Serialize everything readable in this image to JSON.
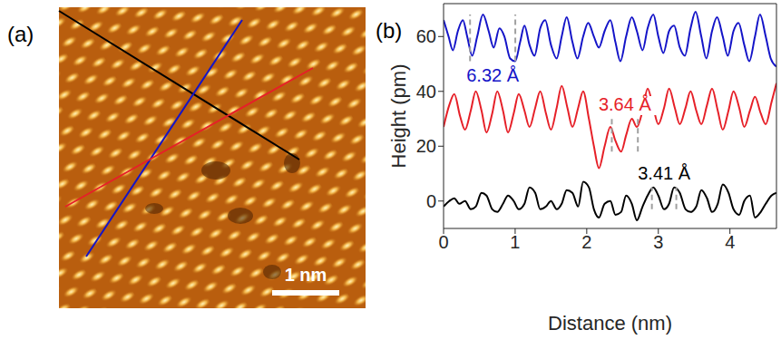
{
  "image_panel": {
    "label": "(a)",
    "scale_bar": "1 nm"
  },
  "chart_data": {
    "label": "(b)",
    "type": "line",
    "x_label": "Distance (nm)",
    "y_label": "Height (pm)",
    "xlim": [
      0,
      4.65
    ],
    "xticks": [
      0,
      1,
      2,
      3,
      4
    ],
    "ylim": [
      -10,
      72
    ],
    "yticks": [
      0,
      20,
      40,
      60
    ],
    "grid": false,
    "series": [
      {
        "color": "#1414c8",
        "measured_positions": [
          0.37,
          1.002
        ],
        "measured_label": "6.32 Å",
        "x": [
          0,
          0.07,
          0.13,
          0.2,
          0.27,
          0.33,
          0.4,
          0.47,
          0.55,
          0.63,
          0.7,
          0.78,
          0.85,
          0.93,
          1.0,
          1.07,
          1.13,
          1.2,
          1.27,
          1.35,
          1.42,
          1.5,
          1.58,
          1.65,
          1.72,
          1.8,
          1.87,
          1.95,
          2.02,
          2.1,
          2.17,
          2.25,
          2.33,
          2.4,
          2.47,
          2.55,
          2.63,
          2.7,
          2.78,
          2.85,
          2.93,
          3.0,
          3.07,
          3.15,
          3.22,
          3.3,
          3.37,
          3.45,
          3.52,
          3.6,
          3.67,
          3.75,
          3.82,
          3.9,
          3.97,
          4.05,
          4.12,
          4.2,
          4.27,
          4.35,
          4.42,
          4.5,
          4.57,
          4.65
        ],
        "values": [
          66,
          60,
          55,
          62,
          66,
          60,
          53,
          60,
          68,
          62,
          56,
          63,
          60,
          52,
          51,
          58,
          64,
          57,
          53,
          63,
          66,
          57,
          52,
          60,
          67,
          58,
          52,
          60,
          65,
          60,
          56,
          62,
          66,
          58,
          51,
          60,
          67,
          62,
          55,
          63,
          68,
          60,
          54,
          62,
          64,
          56,
          53,
          63,
          69,
          60,
          52,
          62,
          67,
          60,
          53,
          62,
          65,
          57,
          51,
          60,
          68,
          60,
          52,
          49
        ]
      },
      {
        "color": "#e62028",
        "measured_positions": [
          2.35,
          2.714
        ],
        "measured_label": "3.64 Å",
        "x": [
          0,
          0.08,
          0.15,
          0.23,
          0.3,
          0.38,
          0.45,
          0.53,
          0.6,
          0.68,
          0.75,
          0.83,
          0.9,
          0.98,
          1.05,
          1.13,
          1.2,
          1.28,
          1.35,
          1.43,
          1.5,
          1.58,
          1.65,
          1.73,
          1.8,
          1.88,
          1.95,
          2.03,
          2.1,
          2.17,
          2.25,
          2.33,
          2.4,
          2.48,
          2.55,
          2.63,
          2.7,
          2.78,
          2.85,
          2.93,
          3.0,
          3.08,
          3.15,
          3.23,
          3.3,
          3.38,
          3.45,
          3.53,
          3.6,
          3.68,
          3.75,
          3.83,
          3.9,
          3.98,
          4.05,
          4.13,
          4.2,
          4.28,
          4.35,
          4.43,
          4.5,
          4.58,
          4.65
        ],
        "values": [
          27,
          35,
          39,
          31,
          26,
          33,
          40,
          33,
          25,
          32,
          40,
          33,
          25,
          32,
          39,
          33,
          27,
          34,
          40,
          32,
          26,
          34,
          42,
          34,
          27,
          34,
          40,
          30,
          20,
          12,
          20,
          27,
          22,
          18,
          24,
          30,
          27,
          33,
          41,
          34,
          28,
          34,
          41,
          34,
          28,
          34,
          40,
          33,
          28,
          35,
          41,
          33,
          26,
          33,
          40,
          34,
          27,
          33,
          38,
          32,
          28,
          36,
          43
        ]
      },
      {
        "color": "#000000",
        "measured_positions": [
          2.91,
          3.251
        ],
        "measured_label": "3.41 Å",
        "x": [
          0,
          0.08,
          0.15,
          0.22,
          0.3,
          0.38,
          0.45,
          0.53,
          0.6,
          0.68,
          0.75,
          0.83,
          0.9,
          0.98,
          1.05,
          1.13,
          1.2,
          1.28,
          1.35,
          1.43,
          1.5,
          1.58,
          1.65,
          1.72,
          1.8,
          1.88,
          1.95,
          2.03,
          2.1,
          2.17,
          2.25,
          2.33,
          2.4,
          2.48,
          2.55,
          2.63,
          2.7,
          2.78,
          2.85,
          2.93,
          3.0,
          3.08,
          3.15,
          3.22,
          3.3,
          3.38,
          3.45,
          3.53,
          3.6,
          3.68,
          3.75,
          3.83,
          3.9,
          3.98,
          4.05,
          4.13,
          4.2,
          4.28,
          4.35,
          4.43,
          4.5,
          4.58,
          4.65
        ],
        "values": [
          -2,
          0,
          1,
          -1,
          0,
          -3,
          -2,
          3,
          2,
          -3,
          -4,
          -1,
          2,
          0,
          -3,
          -1,
          5,
          3,
          -3,
          -2,
          0,
          -3,
          -1,
          4,
          3,
          -2,
          7,
          5,
          -3,
          -6,
          -1,
          0,
          -5,
          -4,
          2,
          -1,
          -7,
          -2,
          2,
          5,
          2,
          -3,
          -1,
          5,
          3,
          -3,
          -4,
          -2,
          4,
          1,
          -4,
          -1,
          6,
          3,
          -3,
          -5,
          0,
          2,
          -6,
          -4,
          -1,
          2,
          3
        ]
      }
    ]
  }
}
